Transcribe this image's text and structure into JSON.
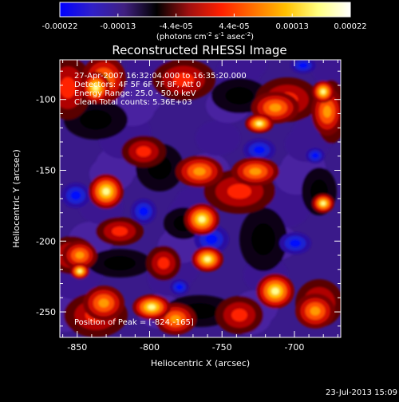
{
  "colorbar": {
    "ticks": [
      "-0.00022",
      "-0.00013",
      "-4.4e-05",
      "4.4e-05",
      "0.00013",
      "0.00022"
    ],
    "units_main": "(photons cm",
    "units_exp1": "-2",
    "units_mid": " s",
    "units_exp2": "-1",
    "units_end": " asec",
    "units_exp3": "-2",
    "units_close": ")",
    "stops": [
      "#0000ff",
      "#3020c8",
      "#402080",
      "#000000",
      "#a01010",
      "#ff2000",
      "#ff7000",
      "#ffc000",
      "#ffff80",
      "#ffffff"
    ]
  },
  "plot": {
    "title": "Reconstructed RHESSI Image",
    "info_lines": [
      "27-Apr-2007 16:32:04.000 to 16:35:20.000",
      "Detectors: 4F 5F 6F 7F 8F, Att 0",
      "Energy Range: 25.0 - 50.0 keV",
      "Clean    Total counts: 5.36E+03"
    ],
    "peak_label": "Position of Peak = [-824,-165]",
    "xlabel": "Heliocentric X (arcsec)",
    "ylabel": "Heliocentric Y (arcsec)",
    "x_range": [
      -862,
      -668
    ],
    "y_range": [
      -268,
      -72
    ],
    "x_ticks": [
      {
        "value": -850,
        "label": "-850"
      },
      {
        "value": -800,
        "label": "-800"
      },
      {
        "value": -750,
        "label": "-750"
      },
      {
        "value": -700,
        "label": "-700"
      }
    ],
    "y_ticks": [
      {
        "value": -100,
        "label": "-100"
      },
      {
        "value": -150,
        "label": "-150"
      },
      {
        "value": -200,
        "label": "-200"
      },
      {
        "value": -250,
        "label": "-250"
      }
    ]
  },
  "footer": {
    "timestamp": "23-Jul-2013 15:09"
  }
}
